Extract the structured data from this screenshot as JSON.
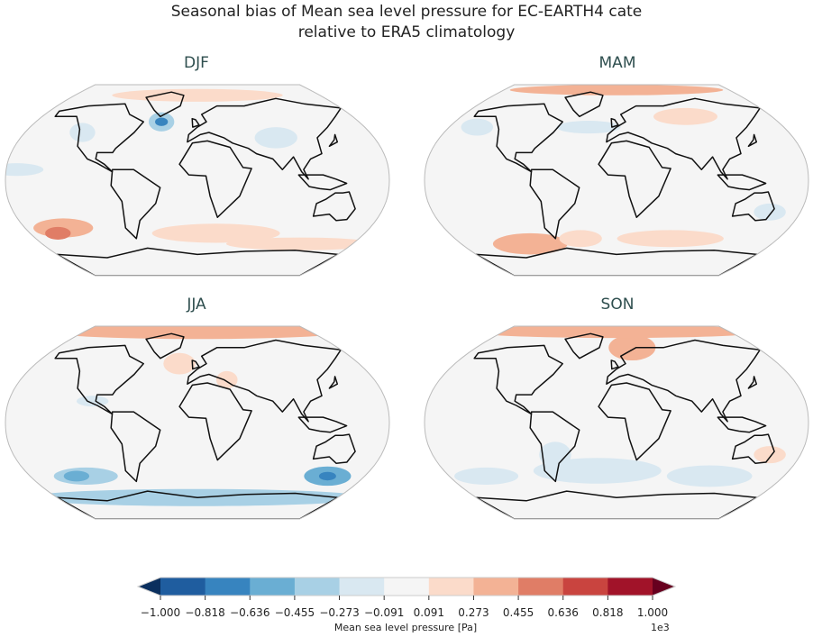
{
  "title_line1": "Seasonal bias of Mean sea level pressure for EC-EARTH4 cate",
  "title_line2": "relative to ERA5 climatology",
  "panels": [
    {
      "title": "DJF"
    },
    {
      "title": "MAM"
    },
    {
      "title": "JJA"
    },
    {
      "title": "SON"
    }
  ],
  "colorbar": {
    "label": "Mean sea level pressure [Pa]",
    "exponent": "1e3",
    "ticks": [
      "−1.000",
      "−0.818",
      "−0.636",
      "−0.455",
      "−0.273",
      "−0.091",
      "0.091",
      "0.273",
      "0.455",
      "0.636",
      "0.818",
      "1.000"
    ],
    "colors": [
      "#1f5d9f",
      "#3784bf",
      "#6aaed3",
      "#a8d0e5",
      "#d9e8f1",
      "#f5f5f5",
      "#fbdbca",
      "#f3b295",
      "#e07d66",
      "#c9443f",
      "#a11329"
    ],
    "extend_min": "#0a2f5e",
    "extend_max": "#67001f"
  }
}
